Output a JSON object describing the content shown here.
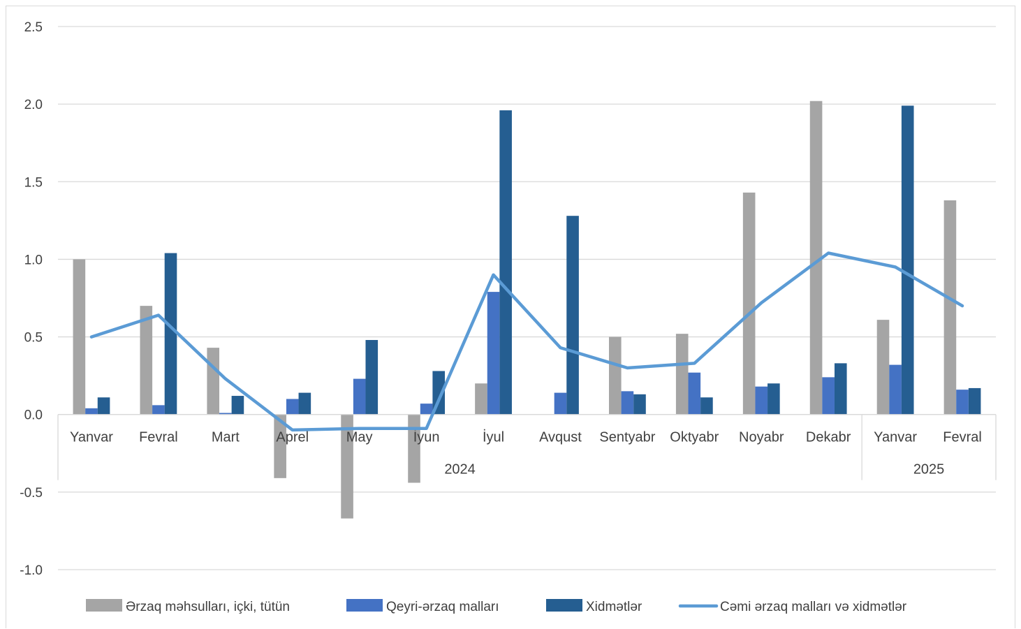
{
  "chart_data": {
    "type": "bar",
    "title": "",
    "xlabel": "",
    "ylabel": "",
    "ylim": [
      -1.0,
      2.5
    ],
    "yticks": [
      "2.5",
      "2.0",
      "1.5",
      "1.0",
      "0.5",
      "0.0",
      "-0.5",
      "-1.0"
    ],
    "grid": true,
    "legend_position": "bottom",
    "categories": [
      "Yanvar",
      "Fevral",
      "Mart",
      "Aprel",
      "May",
      "İyun",
      "İyul",
      "Avqust",
      "Sentyabr",
      "Oktyabr",
      "Noyabr",
      "Dekabr",
      "Yanvar",
      "Fevral"
    ],
    "groups": [
      {
        "label": "2024",
        "count": 12
      },
      {
        "label": "2025",
        "count": 2
      }
    ],
    "series": [
      {
        "name": "Ərzaq məhsulları, içki, tütün",
        "type": "bar",
        "color": "#a5a5a5",
        "values": [
          1.0,
          0.7,
          0.43,
          -0.41,
          -0.67,
          -0.44,
          0.2,
          0.0,
          0.5,
          0.52,
          1.43,
          2.02,
          0.61,
          1.38
        ]
      },
      {
        "name": "Qeyri-ərzaq malları",
        "type": "bar",
        "color": "#4472c4",
        "values": [
          0.04,
          0.06,
          0.01,
          0.1,
          0.23,
          0.07,
          0.79,
          0.14,
          0.15,
          0.27,
          0.18,
          0.24,
          0.32,
          0.16
        ]
      },
      {
        "name": "Xidmətlər",
        "type": "bar",
        "color": "#255e91",
        "values": [
          0.11,
          1.04,
          0.12,
          0.14,
          0.48,
          0.28,
          1.96,
          1.28,
          0.13,
          0.11,
          0.2,
          0.33,
          1.99,
          0.17
        ]
      },
      {
        "name": "Cəmi ərzaq malları və xidmətlər",
        "type": "line",
        "color": "#5b9bd5",
        "values": [
          0.5,
          0.64,
          0.23,
          -0.1,
          -0.09,
          -0.09,
          0.9,
          0.43,
          0.3,
          0.33,
          0.72,
          1.04,
          0.95,
          0.7
        ]
      }
    ]
  }
}
